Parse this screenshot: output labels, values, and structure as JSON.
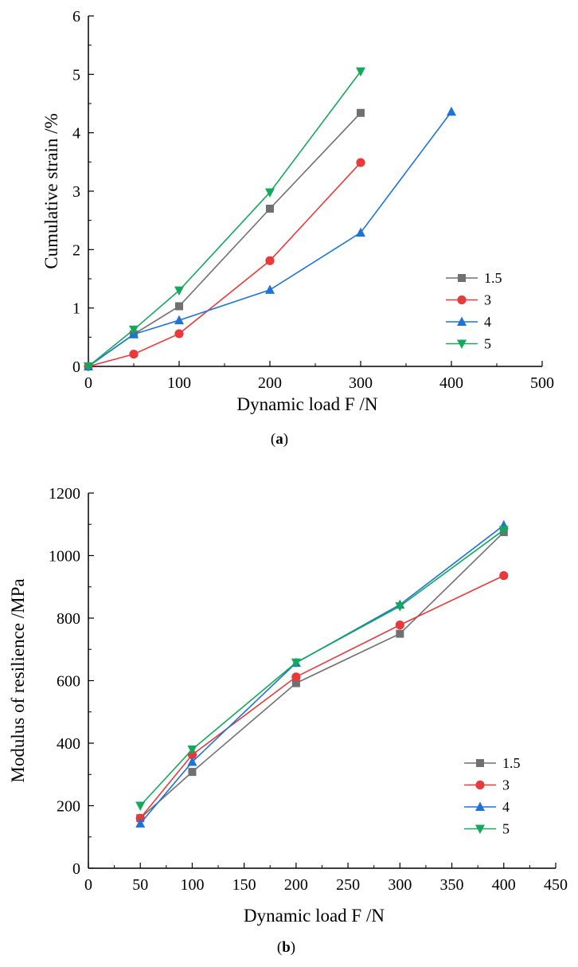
{
  "chart_data": [
    {
      "type": "line",
      "caption": "a",
      "xlabel": "Dynamic load F /N",
      "ylabel": "Cumulative strain /%",
      "xlim": [
        0,
        500
      ],
      "ylim": [
        0,
        6
      ],
      "xticks": [
        0,
        100,
        200,
        300,
        400,
        500
      ],
      "yticks": [
        0,
        1,
        2,
        3,
        4,
        5,
        6
      ],
      "grid": false,
      "legend_position": "right",
      "series": [
        {
          "name": "1.5",
          "color": "#707070",
          "marker": "square",
          "x": [
            0,
            50,
            100,
            200,
            300
          ],
          "y": [
            0,
            0.55,
            1.03,
            2.7,
            4.34
          ]
        },
        {
          "name": "3",
          "color": "#e83a3a",
          "marker": "circle",
          "x": [
            0,
            50,
            100,
            200,
            300
          ],
          "y": [
            0,
            0.21,
            0.56,
            1.81,
            3.49
          ]
        },
        {
          "name": "4",
          "color": "#1f73d6",
          "marker": "triangle-up",
          "x": [
            0,
            50,
            100,
            200,
            300,
            400
          ],
          "y": [
            0,
            0.55,
            0.79,
            1.31,
            2.29,
            4.36
          ]
        },
        {
          "name": "5",
          "color": "#13a85a",
          "marker": "triangle-down",
          "x": [
            0,
            50,
            100,
            200,
            300
          ],
          "y": [
            0,
            0.63,
            1.3,
            2.98,
            5.05
          ]
        }
      ]
    },
    {
      "type": "line",
      "caption": "b",
      "xlabel": "Dynamic load F /N",
      "ylabel": "Modulus of resilience /MPa",
      "xlim": [
        0,
        450
      ],
      "ylim": [
        0,
        1200
      ],
      "xticks": [
        0,
        50,
        100,
        150,
        200,
        250,
        300,
        350,
        400,
        450
      ],
      "yticks": [
        0,
        200,
        400,
        600,
        800,
        1000,
        1200
      ],
      "grid": false,
      "legend_position": "right",
      "series": [
        {
          "name": "1.5",
          "color": "#707070",
          "marker": "square",
          "x": [
            50,
            100,
            200,
            300,
            400
          ],
          "y": [
            160,
            308,
            592,
            750,
            1075
          ]
        },
        {
          "name": "3",
          "color": "#e83a3a",
          "marker": "circle",
          "x": [
            50,
            100,
            200,
            300,
            400
          ],
          "y": [
            160,
            363,
            612,
            778,
            936
          ]
        },
        {
          "name": "4",
          "color": "#1f73d6",
          "marker": "triangle-up",
          "x": [
            50,
            100,
            200,
            300,
            400
          ],
          "y": [
            143,
            340,
            657,
            843,
            1097
          ]
        },
        {
          "name": "5",
          "color": "#13a85a",
          "marker": "triangle-down",
          "x": [
            50,
            100,
            200,
            300,
            400
          ],
          "y": [
            200,
            380,
            658,
            838,
            1082
          ]
        }
      ]
    }
  ]
}
